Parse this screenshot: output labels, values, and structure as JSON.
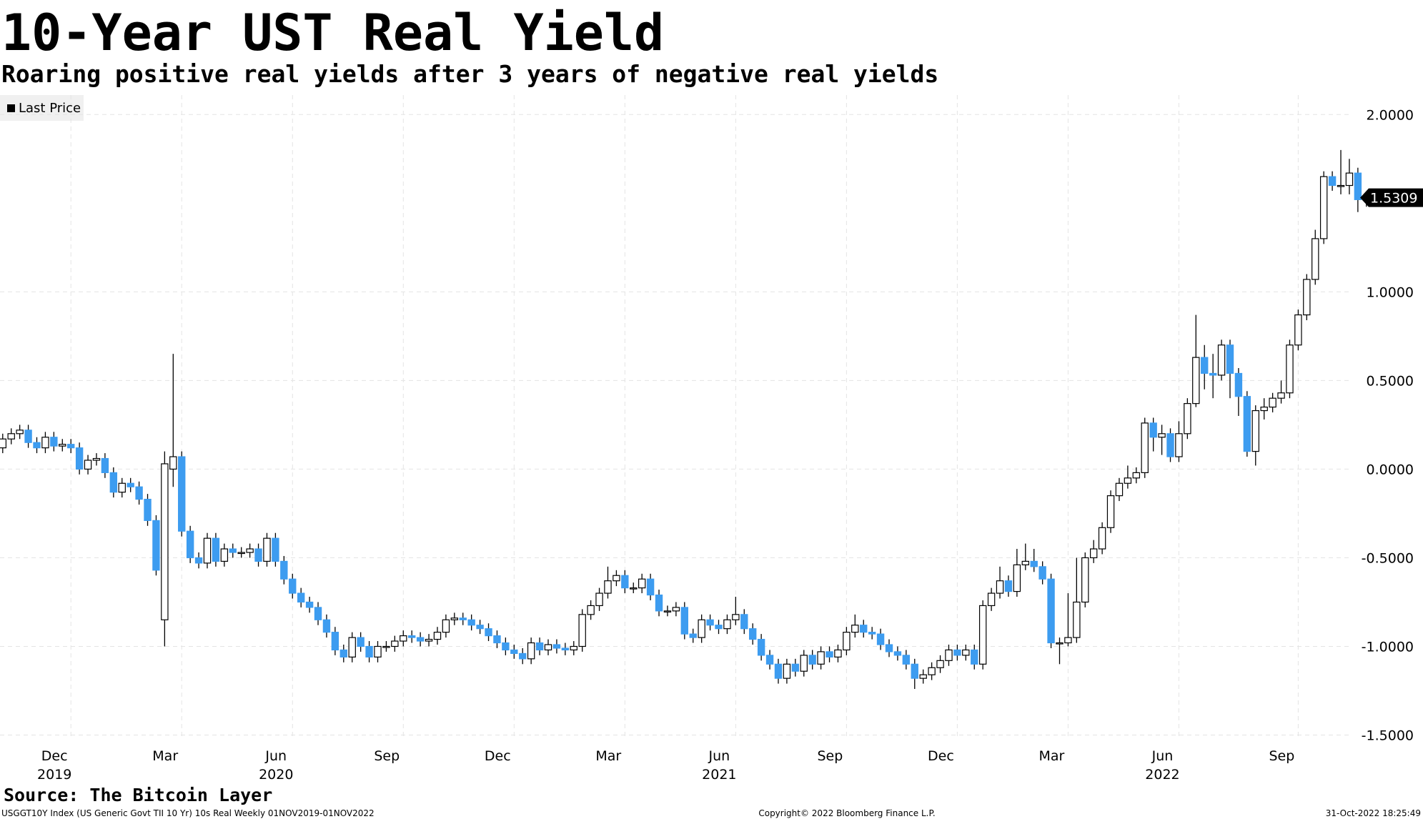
{
  "chart_data": {
    "type": "candlestick",
    "title": "10-Year UST Real Yield",
    "subtitle": "Roaring positive real yields after 3 years of negative real yields",
    "source": "Source: The Bitcoin Layer",
    "footer_left": "USGGT10Y Index (US Generic Govt TII 10 Yr) 10s Real  Weekly 01NOV2019-01NOV2022",
    "footer_center": "Copyright© 2022 Bloomberg Finance L.P.",
    "footer_right": "31-Oct-2022 18:25:49",
    "ylim": [
      -1.51,
      2.11
    ],
    "yticks": [
      {
        "value": -1.5,
        "label": "-1.5000"
      },
      {
        "value": -1,
        "label": "-1.0000"
      },
      {
        "value": -0.5,
        "label": "-0.5000"
      },
      {
        "value": 0,
        "label": "0.0000"
      },
      {
        "value": 0.5,
        "label": "0.5000"
      },
      {
        "value": 1,
        "label": "1.0000"
      },
      {
        "value": 2,
        "label": "2.0000"
      }
    ],
    "grid": true,
    "legend": "top-left",
    "categories": [
      null,
      null,
      null,
      null,
      null,
      null,
      null,
      null,
      "Dec",
      null,
      null,
      null,
      null,
      null,
      null,
      null,
      null,
      null,
      null,
      null,
      null,
      "Mar",
      null,
      null,
      null,
      null,
      null,
      null,
      null,
      null,
      null,
      null,
      null,
      null,
      "Jun",
      null,
      null,
      null,
      null,
      null,
      null,
      null,
      null,
      null,
      null,
      null,
      null,
      "Sep",
      null,
      null,
      null,
      null,
      null,
      null,
      null,
      null,
      null,
      null,
      null,
      null,
      "Dec",
      null,
      null,
      null,
      null,
      null,
      null,
      null,
      null,
      null,
      null,
      null,
      null,
      "Mar",
      null,
      null,
      null,
      null,
      null,
      null,
      null,
      null,
      null,
      null,
      null,
      null,
      "Jun",
      null,
      null,
      null,
      null,
      null,
      null,
      null,
      null,
      null,
      null,
      null,
      null,
      "Sep",
      null,
      null,
      null,
      null,
      null,
      null,
      null,
      null,
      null,
      null,
      null,
      null,
      "Dec",
      null,
      null,
      null,
      null,
      null,
      null,
      null,
      null,
      null,
      null,
      null,
      null,
      "Mar",
      null,
      null,
      null,
      null,
      null,
      null,
      null,
      null,
      null,
      null,
      null,
      null,
      "Jun",
      null,
      null,
      null,
      null,
      null,
      null,
      null,
      null,
      null,
      null,
      null,
      null,
      null,
      "Sep",
      null,
      null,
      null,
      null,
      null,
      null,
      null,
      null
    ],
    "years": [
      null,
      null,
      null,
      null,
      null,
      null,
      null,
      null,
      "2019",
      null,
      null,
      null,
      null,
      null,
      null,
      null,
      null,
      null,
      null,
      null,
      null,
      null,
      null,
      null,
      null,
      null,
      null,
      null,
      null,
      null,
      null,
      null,
      null,
      null,
      "2020",
      null,
      null,
      null,
      null,
      null,
      null,
      null,
      null,
      null,
      null,
      null,
      null,
      null,
      null,
      null,
      null,
      null,
      null,
      null,
      null,
      null,
      null,
      null,
      null,
      null,
      null,
      null,
      null,
      null,
      null,
      null,
      null,
      null,
      null,
      null,
      null,
      null,
      null,
      null,
      null,
      null,
      null,
      null,
      null,
      null,
      null,
      null,
      null,
      null,
      null,
      null,
      "2021",
      null,
      null,
      null,
      null,
      null,
      null,
      null,
      null,
      null,
      null,
      null,
      null,
      null,
      null,
      null,
      null,
      null,
      null,
      null,
      null,
      null,
      null,
      null,
      null,
      null,
      null,
      null,
      null,
      null,
      null,
      null,
      null,
      null,
      null,
      null,
      null,
      null,
      null,
      null,
      null,
      null,
      null,
      null,
      null,
      null,
      null,
      null,
      null,
      null,
      null,
      null,
      "2022",
      null,
      null,
      null,
      null,
      null,
      null,
      null,
      null,
      null,
      null,
      null,
      null,
      null,
      null,
      null,
      null,
      null,
      null,
      null,
      null,
      null,
      null
    ],
    "series": [
      {
        "name": "Last Price",
        "legend_color": "#000000",
        "up_color": "#ffffff",
        "down_color": "#3d9cf0",
        "wick_color": "#000000",
        "open": [
          0.12,
          0.17,
          0.2,
          0.22,
          0.15,
          0.12,
          0.18,
          0.13,
          0.14,
          0.12,
          0.0,
          0.05,
          0.06,
          -0.02,
          -0.13,
          -0.08,
          -0.1,
          -0.17,
          -0.29,
          -0.85,
          0.0,
          0.07,
          -0.35,
          -0.5,
          -0.53,
          -0.39,
          -0.52,
          -0.45,
          -0.47,
          -0.47,
          -0.45,
          -0.52,
          -0.39,
          -0.52,
          -0.62,
          -0.7,
          -0.75,
          -0.78,
          -0.85,
          -0.92,
          -1.02,
          -1.06,
          -0.95,
          -1.0,
          -1.06,
          -1.0,
          -1.0,
          -0.97,
          -0.94,
          -0.95,
          -0.97,
          -0.96,
          -0.92,
          -0.85,
          -0.84,
          -0.85,
          -0.88,
          -0.9,
          -0.94,
          -0.98,
          -1.02,
          -1.04,
          -1.07,
          -0.98,
          -1.02,
          -0.99,
          -1.01,
          -1.02,
          -1.0,
          -0.82,
          -0.77,
          -0.7,
          -0.63,
          -0.6,
          -0.67,
          -0.67,
          -0.62,
          -0.71,
          -0.8,
          -0.8,
          -0.78,
          -0.93,
          -0.95,
          -0.85,
          -0.88,
          -0.9,
          -0.85,
          -0.82,
          -0.9,
          -0.96,
          -1.05,
          -1.1,
          -1.18,
          -1.1,
          -1.14,
          -1.05,
          -1.1,
          -1.03,
          -1.06,
          -1.02,
          -0.92,
          -0.88,
          -0.92,
          -0.93,
          -0.99,
          -1.03,
          -1.05,
          -1.1,
          -1.18,
          -1.16,
          -1.12,
          -1.08,
          -1.02,
          -1.05,
          -1.02,
          -1.1,
          -0.77,
          -0.7,
          -0.63,
          -0.69,
          -0.54,
          -0.52,
          -0.55,
          -0.62,
          -0.98,
          -0.98,
          -0.95,
          -0.75,
          -0.5,
          -0.45,
          -0.33,
          -0.15,
          -0.08,
          -0.05,
          -0.02,
          0.26,
          0.18,
          0.2,
          0.07,
          0.2,
          0.37,
          0.63,
          0.54,
          0.53,
          0.7,
          0.54,
          0.41,
          0.1,
          0.33,
          0.35,
          0.4,
          0.43,
          0.7,
          0.87,
          1.07,
          1.3,
          1.65,
          1.6,
          1.6,
          1.67,
          1.52
        ],
        "high": [
          0.2,
          0.23,
          0.25,
          0.25,
          0.18,
          0.21,
          0.21,
          0.17,
          0.17,
          0.15,
          0.08,
          0.09,
          0.09,
          0.01,
          -0.05,
          -0.05,
          -0.07,
          -0.14,
          -0.26,
          0.1,
          0.65,
          0.1,
          -0.32,
          -0.47,
          -0.36,
          -0.36,
          -0.42,
          -0.42,
          -0.44,
          -0.42,
          -0.42,
          -0.36,
          -0.36,
          -0.49,
          -0.59,
          -0.67,
          -0.72,
          -0.75,
          -0.82,
          -0.89,
          -0.99,
          -0.92,
          -0.92,
          -0.97,
          -0.97,
          -0.97,
          -0.94,
          -0.91,
          -0.91,
          -0.92,
          -0.93,
          -0.89,
          -0.82,
          -0.81,
          -0.81,
          -0.82,
          -0.85,
          -0.87,
          -0.91,
          -0.95,
          -0.99,
          -1.01,
          -0.95,
          -0.95,
          -0.96,
          -0.96,
          -0.98,
          -0.97,
          -0.79,
          -0.74,
          -0.67,
          -0.55,
          -0.57,
          -0.57,
          -0.64,
          -0.59,
          -0.59,
          -0.68,
          -0.77,
          -0.75,
          -0.75,
          -0.9,
          -0.82,
          -0.82,
          -0.85,
          -0.82,
          -0.72,
          -0.79,
          -0.87,
          -0.93,
          -1.02,
          -1.07,
          -1.07,
          -1.07,
          -1.02,
          -1.02,
          -1.0,
          -1.0,
          -0.99,
          -0.89,
          -0.82,
          -0.85,
          -0.89,
          -0.9,
          -0.96,
          -1.0,
          -1.02,
          -1.07,
          -1.13,
          -1.09,
          -1.05,
          -0.99,
          -0.99,
          -0.99,
          -0.99,
          -0.74,
          -0.67,
          -0.55,
          -0.6,
          -0.45,
          -0.42,
          -0.45,
          -0.52,
          -0.59,
          -0.95,
          -0.7,
          -0.5,
          -0.47,
          -0.4,
          -0.3,
          -0.12,
          -0.05,
          0.02,
          0.01,
          0.29,
          0.29,
          0.25,
          0.23,
          0.27,
          0.4,
          0.87,
          0.7,
          0.65,
          0.73,
          0.73,
          0.57,
          0.44,
          0.36,
          0.4,
          0.43,
          0.5,
          0.73,
          0.9,
          1.1,
          1.35,
          1.68,
          1.68,
          1.8,
          1.75,
          1.7,
          1.56
        ],
        "low": [
          0.09,
          0.14,
          0.17,
          0.12,
          0.09,
          0.09,
          0.1,
          0.1,
          0.09,
          -0.03,
          -0.03,
          0.02,
          -0.05,
          -0.16,
          -0.16,
          -0.13,
          -0.2,
          -0.32,
          -0.6,
          -1.0,
          -0.1,
          -0.38,
          -0.53,
          -0.56,
          -0.56,
          -0.55,
          -0.55,
          -0.5,
          -0.5,
          -0.5,
          -0.55,
          -0.55,
          -0.55,
          -0.65,
          -0.73,
          -0.78,
          -0.81,
          -0.88,
          -0.95,
          -1.05,
          -1.09,
          -1.09,
          -1.03,
          -1.09,
          -1.09,
          -1.03,
          -1.03,
          -1.0,
          -0.98,
          -1.0,
          -1.0,
          -0.99,
          -0.95,
          -0.88,
          -0.88,
          -0.91,
          -0.93,
          -0.97,
          -1.01,
          -1.05,
          -1.07,
          -1.1,
          -1.1,
          -1.05,
          -1.05,
          -1.04,
          -1.05,
          -1.05,
          -1.03,
          -0.85,
          -0.8,
          -0.73,
          -0.66,
          -0.7,
          -0.7,
          -0.7,
          -0.74,
          -0.83,
          -0.83,
          -0.83,
          -0.96,
          -0.98,
          -0.98,
          -0.91,
          -0.93,
          -0.93,
          -0.88,
          -0.93,
          -0.99,
          -1.08,
          -1.13,
          -1.21,
          -1.21,
          -1.17,
          -1.17,
          -1.13,
          -1.13,
          -1.09,
          -1.09,
          -1.05,
          -0.95,
          -0.95,
          -0.96,
          -1.02,
          -1.06,
          -1.08,
          -1.13,
          -1.24,
          -1.21,
          -1.19,
          -1.15,
          -1.11,
          -1.08,
          -1.08,
          -1.13,
          -1.13,
          -0.8,
          -0.73,
          -0.72,
          -0.72,
          -0.57,
          -0.58,
          -0.65,
          -1.01,
          -1.1,
          -1.0,
          -0.98,
          -0.78,
          -0.53,
          -0.48,
          -0.36,
          -0.18,
          -0.11,
          -0.08,
          -0.05,
          0.1,
          0.08,
          0.04,
          0.04,
          0.17,
          0.35,
          0.45,
          0.4,
          0.5,
          0.4,
          0.3,
          0.07,
          0.02,
          0.28,
          0.32,
          0.37,
          0.4,
          0.67,
          0.84,
          1.04,
          1.27,
          1.57,
          1.55,
          1.55,
          1.45,
          1.48
        ],
        "close": [
          0.17,
          0.2,
          0.22,
          0.15,
          0.12,
          0.18,
          0.13,
          0.14,
          0.12,
          0.0,
          0.05,
          0.06,
          -0.02,
          -0.13,
          -0.08,
          -0.1,
          -0.17,
          -0.29,
          -0.57,
          0.03,
          0.07,
          -0.35,
          -0.5,
          -0.53,
          -0.39,
          -0.52,
          -0.45,
          -0.47,
          -0.47,
          -0.45,
          -0.52,
          -0.39,
          -0.52,
          -0.62,
          -0.7,
          -0.75,
          -0.78,
          -0.85,
          -0.92,
          -1.02,
          -1.06,
          -0.95,
          -1.0,
          -1.06,
          -1.0,
          -1.0,
          -0.97,
          -0.94,
          -0.95,
          -0.97,
          -0.96,
          -0.92,
          -0.85,
          -0.84,
          -0.85,
          -0.88,
          -0.9,
          -0.94,
          -0.98,
          -1.02,
          -1.04,
          -1.07,
          -0.98,
          -1.02,
          -0.99,
          -1.01,
          -1.02,
          -1.0,
          -0.82,
          -0.77,
          -0.7,
          -0.63,
          -0.6,
          -0.67,
          -0.67,
          -0.62,
          -0.71,
          -0.8,
          -0.8,
          -0.78,
          -0.93,
          -0.95,
          -0.85,
          -0.88,
          -0.9,
          -0.85,
          -0.82,
          -0.9,
          -0.96,
          -1.05,
          -1.1,
          -1.18,
          -1.1,
          -1.14,
          -1.05,
          -1.1,
          -1.03,
          -1.06,
          -1.02,
          -0.92,
          -0.88,
          -0.92,
          -0.93,
          -0.99,
          -1.03,
          -1.05,
          -1.1,
          -1.18,
          -1.16,
          -1.12,
          -1.08,
          -1.02,
          -1.05,
          -1.02,
          -1.1,
          -0.77,
          -0.7,
          -0.63,
          -0.69,
          -0.54,
          -0.52,
          -0.55,
          -0.62,
          -0.98,
          -0.98,
          -0.95,
          -0.75,
          -0.5,
          -0.45,
          -0.33,
          -0.15,
          -0.08,
          -0.05,
          -0.02,
          0.26,
          0.18,
          0.2,
          0.07,
          0.2,
          0.37,
          0.63,
          0.54,
          0.53,
          0.7,
          0.54,
          0.41,
          0.1,
          0.33,
          0.35,
          0.4,
          0.43,
          0.7,
          0.87,
          1.07,
          1.3,
          1.65,
          1.6,
          1.6,
          1.67,
          1.52,
          1.5309
        ]
      }
    ]
  }
}
